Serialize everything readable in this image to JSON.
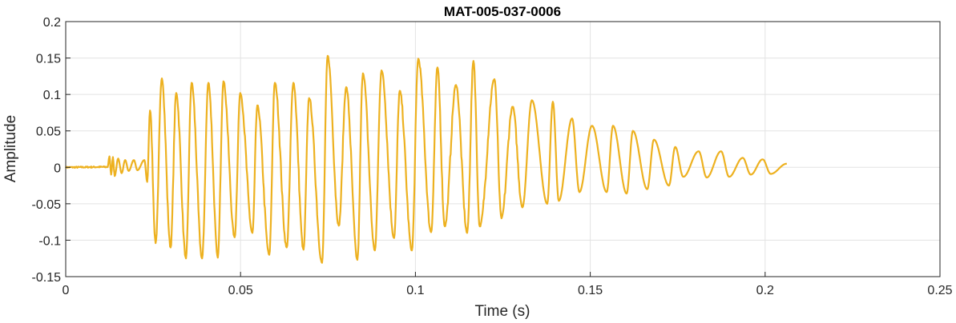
{
  "chart_data": {
    "type": "line",
    "title": "MAT-005-037-0006",
    "xlabel": "Time (s)",
    "ylabel": "Amplitude",
    "xlim": [
      0,
      0.25
    ],
    "ylim": [
      -0.15,
      0.2
    ],
    "xticks": [
      "0",
      "0.05",
      "0.1",
      "0.15",
      "0.2",
      "0.25"
    ],
    "xtick_values": [
      0,
      0.05,
      0.1,
      0.15,
      0.2,
      0.25
    ],
    "yticks": [
      "-0.15",
      "-0.1",
      "-0.05",
      "0",
      "0.05",
      "0.1",
      "0.15",
      "0.2"
    ],
    "ytick_values": [
      -0.15,
      -0.1,
      -0.05,
      0,
      0.05,
      0.1,
      0.15,
      0.2
    ],
    "grid": true,
    "line_color": "#EDB120",
    "series": [
      {
        "extrema": [
          [
            0,
            0
          ],
          [
            0.012,
            0.0005
          ],
          [
            0.0125,
            0.015
          ],
          [
            0.013,
            -0.01
          ],
          [
            0.0135,
            0.014
          ],
          [
            0.014,
            -0.012
          ],
          [
            0.015,
            0.012
          ],
          [
            0.016,
            -0.008
          ],
          [
            0.017,
            0.01
          ],
          [
            0.018,
            -0.005
          ],
          [
            0.0195,
            0.01
          ],
          [
            0.0205,
            -0.004
          ],
          [
            0.0225,
            0.01
          ],
          [
            0.0233,
            -0.02
          ],
          [
            0.0241,
            0.078
          ],
          [
            0.0257,
            -0.104
          ],
          [
            0.0275,
            0.122
          ],
          [
            0.03,
            -0.11
          ],
          [
            0.0316,
            0.102
          ],
          [
            0.0344,
            -0.125
          ],
          [
            0.036,
            0.116
          ],
          [
            0.039,
            -0.125
          ],
          [
            0.0408,
            0.116
          ],
          [
            0.0435,
            -0.124
          ],
          [
            0.0451,
            0.118
          ],
          [
            0.0483,
            -0.096
          ],
          [
            0.0499,
            0.102
          ],
          [
            0.0534,
            -0.09
          ],
          [
            0.0548,
            0.085
          ],
          [
            0.0582,
            -0.12
          ],
          [
            0.0598,
            0.116
          ],
          [
            0.0632,
            -0.11
          ],
          [
            0.0651,
            0.116
          ],
          [
            0.068,
            -0.113
          ],
          [
            0.0696,
            0.095
          ],
          [
            0.0733,
            -0.131
          ],
          [
            0.0749,
            0.153
          ],
          [
            0.0781,
            -0.08
          ],
          [
            0.0802,
            0.11
          ],
          [
            0.0834,
            -0.127
          ],
          [
            0.085,
            0.129
          ],
          [
            0.0884,
            -0.114
          ],
          [
            0.0903,
            0.133
          ],
          [
            0.0939,
            -0.097
          ],
          [
            0.0955,
            0.105
          ],
          [
            0.099,
            -0.114
          ],
          [
            0.1008,
            0.149
          ],
          [
            0.1045,
            -0.089
          ],
          [
            0.1063,
            0.137
          ],
          [
            0.1084,
            -0.081
          ],
          [
            0.1116,
            0.113
          ],
          [
            0.1148,
            -0.09
          ],
          [
            0.1166,
            0.146
          ],
          [
            0.1184,
            -0.081
          ],
          [
            0.1226,
            0.121
          ],
          [
            0.1246,
            -0.07
          ],
          [
            0.1278,
            0.083
          ],
          [
            0.1306,
            -0.055
          ],
          [
            0.1333,
            0.092
          ],
          [
            0.1377,
            -0.05
          ],
          [
            0.1393,
            0.09
          ],
          [
            0.141,
            -0.046
          ],
          [
            0.1448,
            0.067
          ],
          [
            0.1469,
            -0.034
          ],
          [
            0.1505,
            0.057
          ],
          [
            0.1547,
            -0.034
          ],
          [
            0.1565,
            0.057
          ],
          [
            0.1604,
            -0.036
          ],
          [
            0.1622,
            0.05
          ],
          [
            0.1663,
            -0.03
          ],
          [
            0.1682,
            0.038
          ],
          [
            0.1725,
            -0.025
          ],
          [
            0.1743,
            0.028
          ],
          [
            0.1766,
            -0.013
          ],
          [
            0.181,
            0.022
          ],
          [
            0.1833,
            -0.014
          ],
          [
            0.1874,
            0.022
          ],
          [
            0.1897,
            -0.013
          ],
          [
            0.1936,
            0.013
          ],
          [
            0.1959,
            -0.01
          ],
          [
            0.1993,
            0.011
          ],
          [
            0.2016,
            -0.009
          ],
          [
            0.2062,
            0.005
          ]
        ]
      }
    ]
  }
}
